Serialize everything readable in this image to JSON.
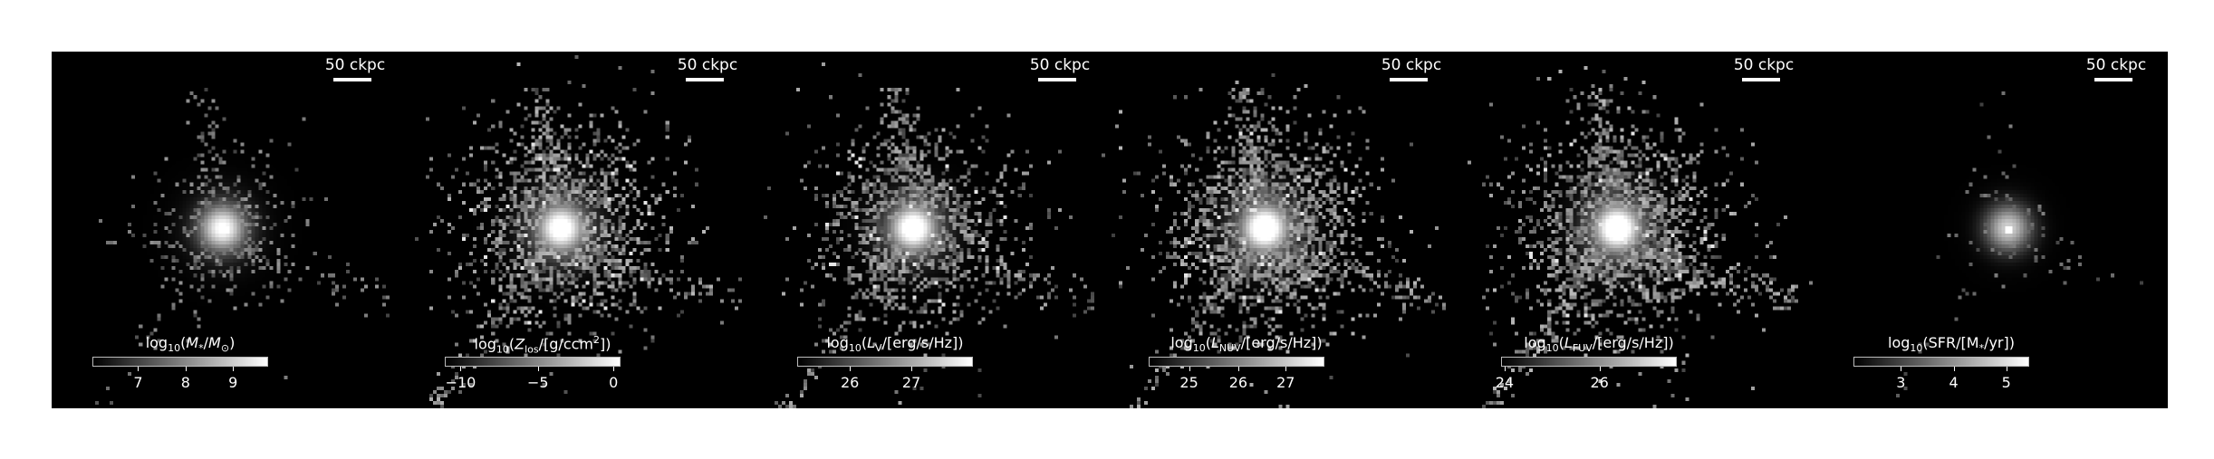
{
  "scalebar_label": "50 ckpc",
  "panels": [
    {
      "id": "mass",
      "cb_title": "log<sub>10</sub>(<i>M</i><sub>*</sub>/<i>M</i><sub>⊙</sub>)",
      "ticks": [
        {
          "label": "7",
          "f": 0.26
        },
        {
          "label": "8",
          "f": 0.53
        },
        {
          "label": "9",
          "f": 0.8
        }
      ]
    },
    {
      "id": "metal",
      "cb_title": "log<sub>10</sub>(<i>Z</i><sub>los</sub>/[g/ccm<sup>2</sup>])",
      "ticks": [
        {
          "label": "−10",
          "f": 0.09
        },
        {
          "label": "−5",
          "f": 0.53
        },
        {
          "label": "0",
          "f": 0.96
        }
      ]
    },
    {
      "id": "lv",
      "cb_title": "log<sub>10</sub>(<i>L</i><sub>V</sub>/[erg/s/Hz])",
      "ticks": [
        {
          "label": "26",
          "f": 0.3
        },
        {
          "label": "27",
          "f": 0.65
        }
      ]
    },
    {
      "id": "lnuv",
      "cb_title": "log<sub>10</sub>(<i>L</i><sub>NUV</sub>/[erg/s/Hz])",
      "ticks": [
        {
          "label": "25",
          "f": 0.23
        },
        {
          "label": "26",
          "f": 0.51
        },
        {
          "label": "27",
          "f": 0.78
        }
      ]
    },
    {
      "id": "lfuv",
      "cb_title": "log<sub>10</sub>(<i>L</i><sub>FUV</sub>/[erg/s/Hz])",
      "ticks": [
        {
          "label": "24",
          "f": 0.02
        },
        {
          "label": "26",
          "f": 0.56
        }
      ]
    },
    {
      "id": "sfr",
      "cb_title": "log<sub>10</sub>(SFR/[M<sub>*</sub>/yr])",
      "ticks": [
        {
          "label": "3",
          "f": 0.27
        },
        {
          "label": "4",
          "f": 0.57
        },
        {
          "label": "5",
          "f": 0.87
        }
      ]
    }
  ]
}
